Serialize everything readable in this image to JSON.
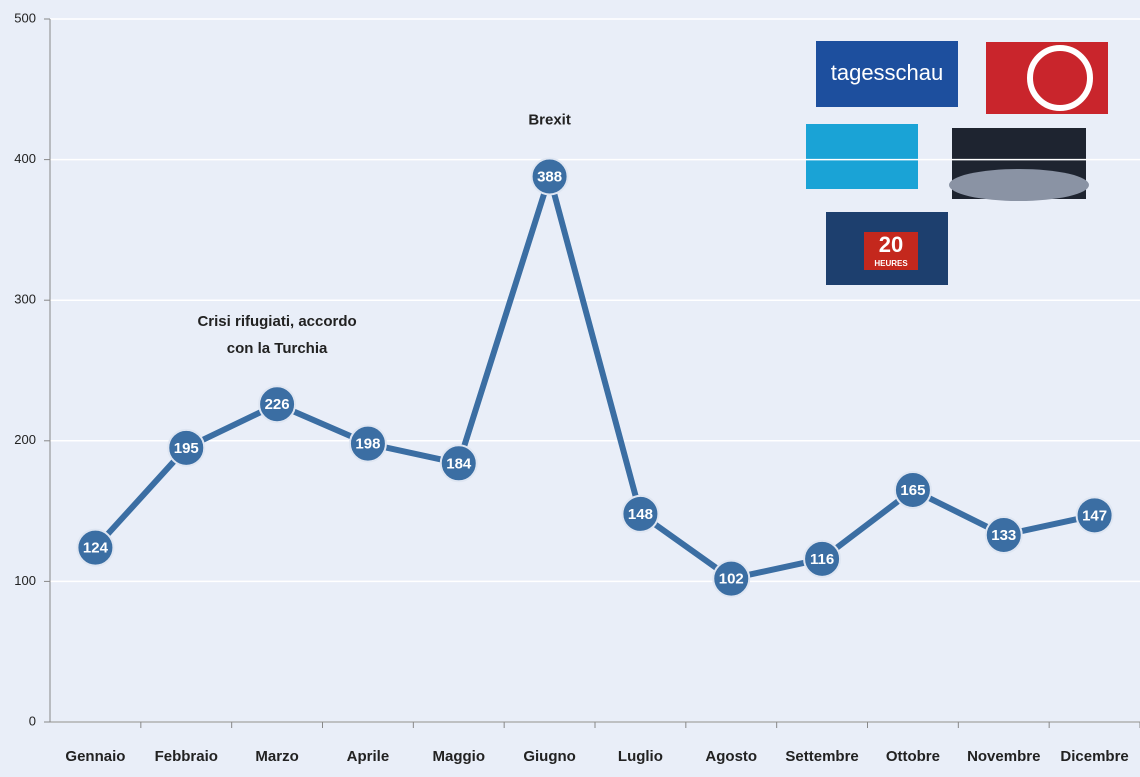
{
  "chart_data": {
    "type": "line",
    "categories": [
      "Gennaio",
      "Febbraio",
      "Marzo",
      "Aprile",
      "Maggio",
      "Giugno",
      "Luglio",
      "Agosto",
      "Settembre",
      "Ottobre",
      "Novembre",
      "Dicembre"
    ],
    "values": [
      124,
      195,
      226,
      198,
      184,
      388,
      148,
      102,
      116,
      165,
      133,
      147
    ],
    "color": "#3b6ea3",
    "ylim": [
      0,
      500
    ],
    "yticks": [
      0,
      100,
      200,
      300,
      400,
      500
    ],
    "grid": true,
    "annotations": [
      {
        "lines": [
          "Crisi rifugiati, accordo",
          "con la Turchia"
        ],
        "category": "Marzo"
      },
      {
        "lines": [
          "Brexit"
        ],
        "category": "Giugno"
      }
    ]
  },
  "logos": [
    "tagesschau",
    "20",
    "HEURES"
  ]
}
